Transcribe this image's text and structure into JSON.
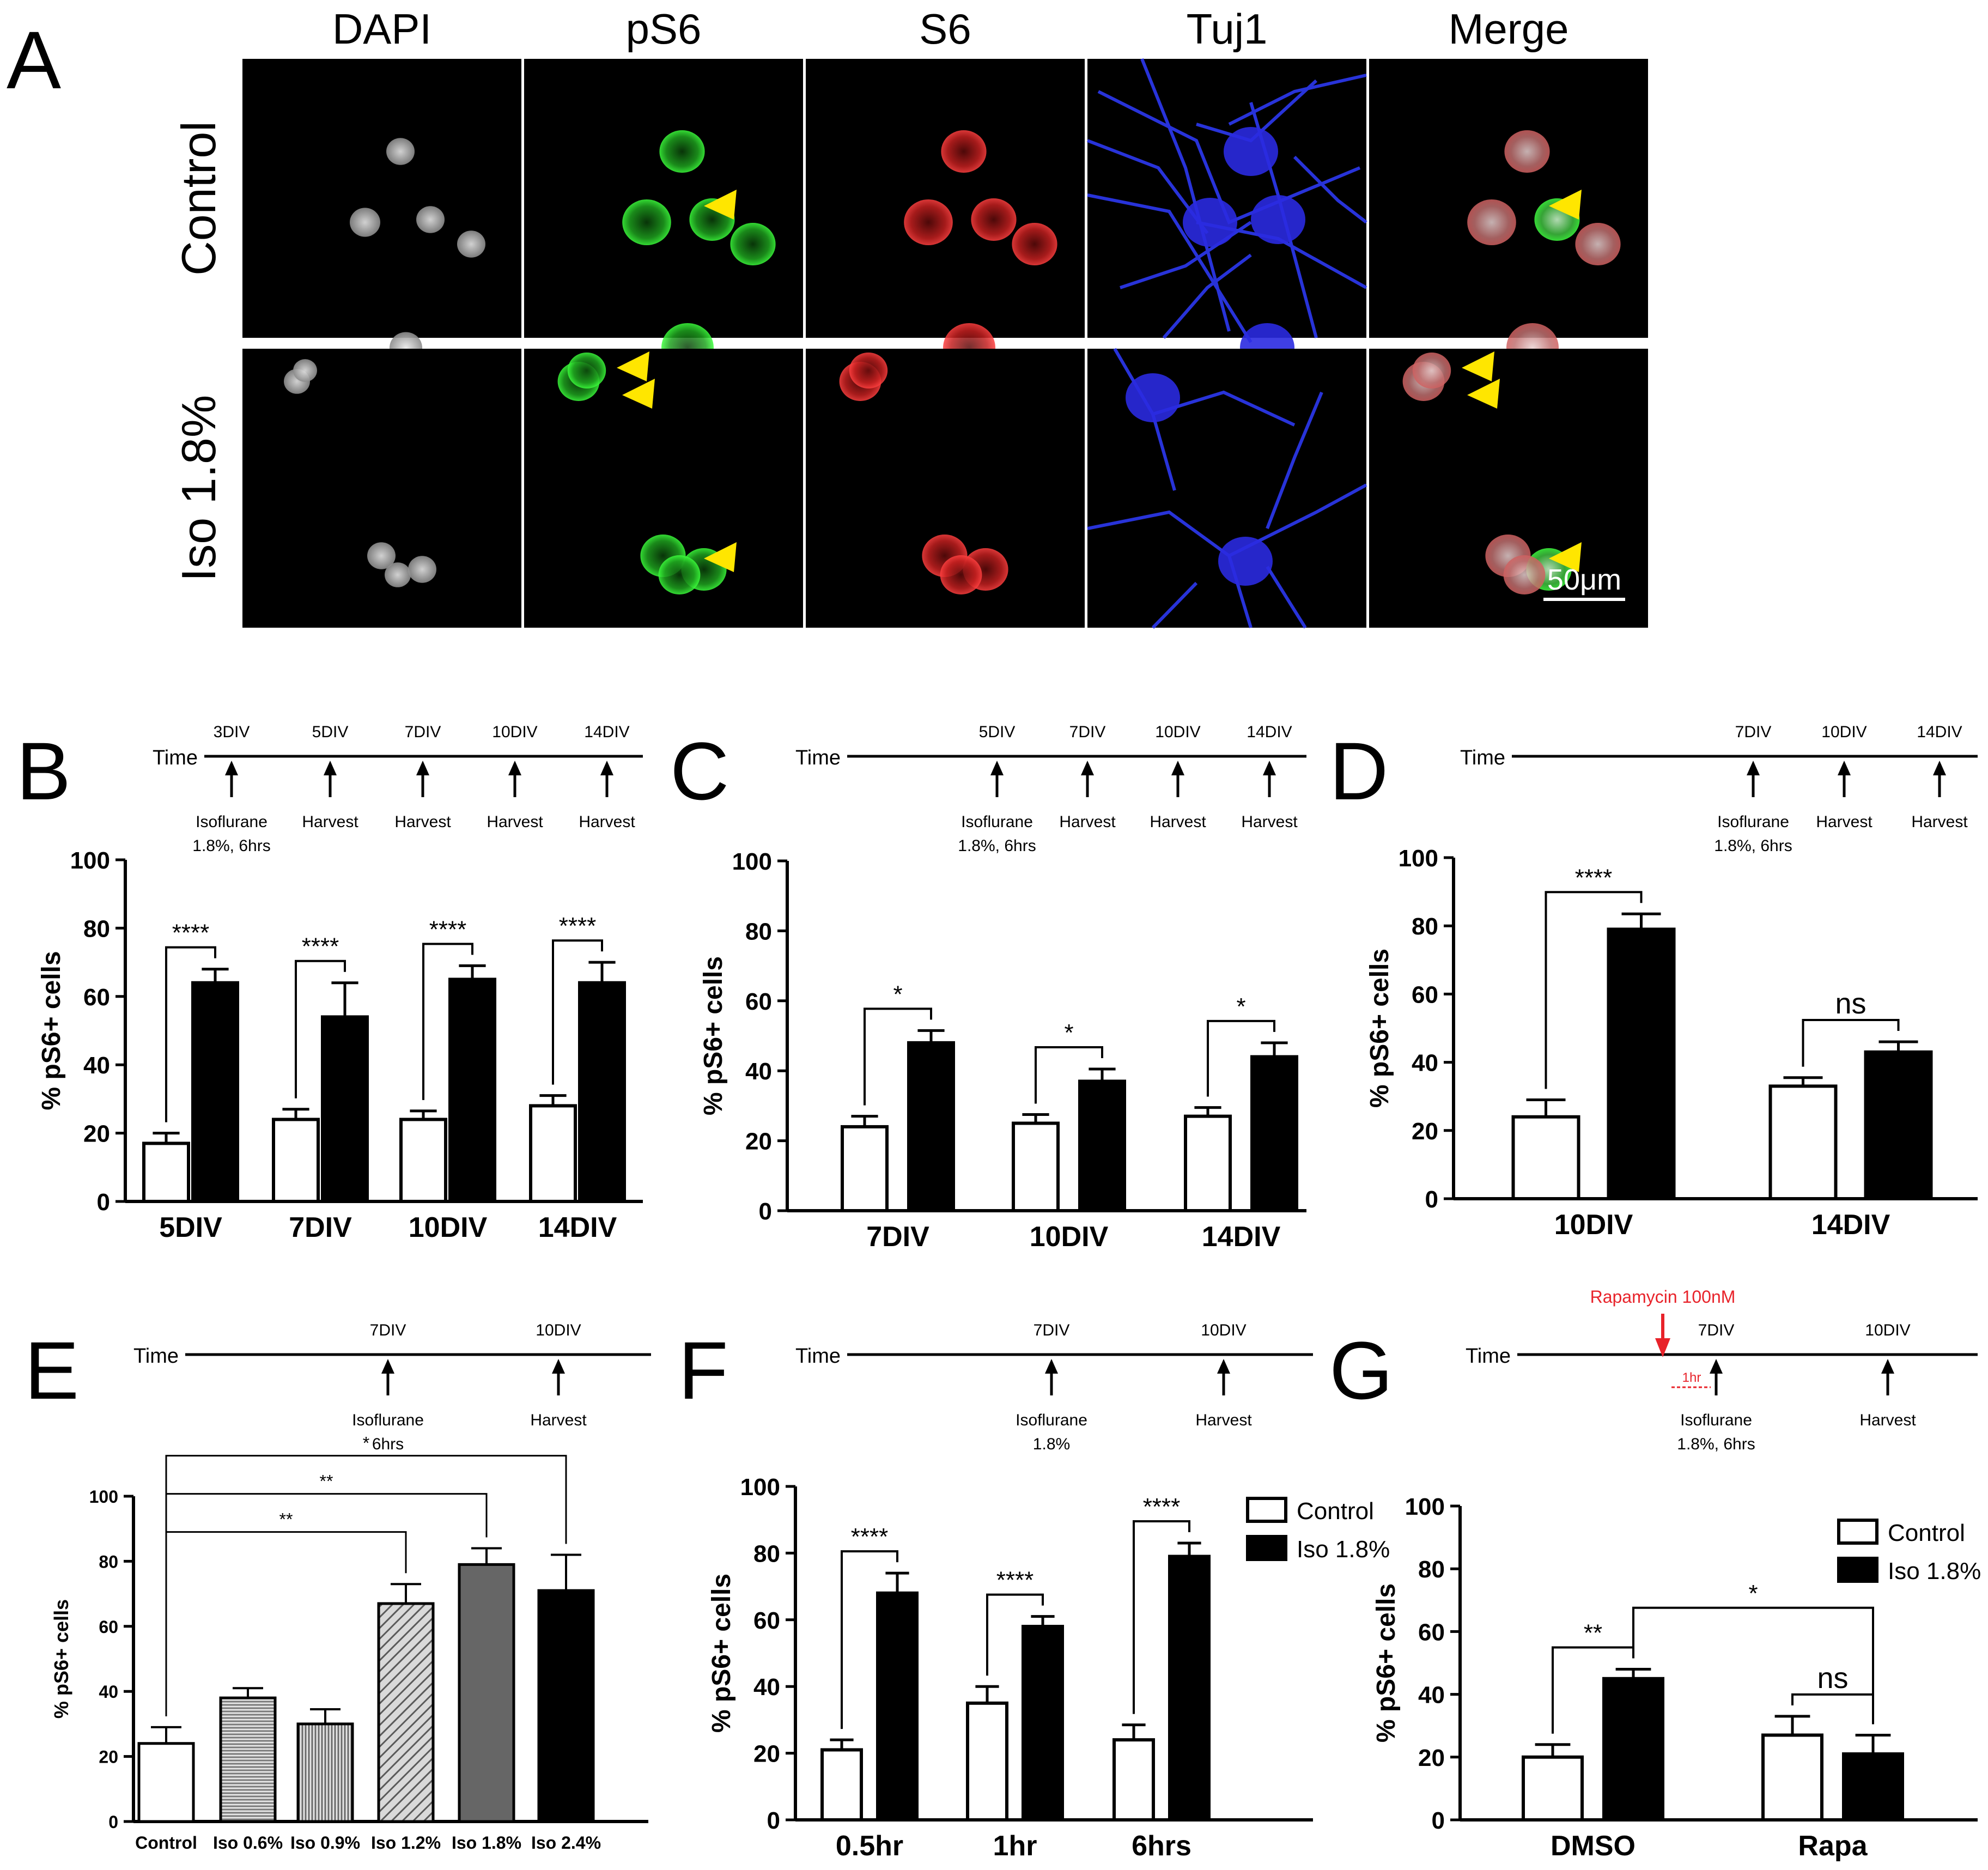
{
  "panel_letters": [
    "A",
    "B",
    "C",
    "D",
    "E",
    "F",
    "G"
  ],
  "micrograph": {
    "columns": [
      "DAPI",
      "pS6",
      "S6",
      "Tuj1",
      "Merge"
    ],
    "rows": [
      "Control",
      "Iso 1.8%"
    ],
    "scale_bar": "50μm"
  },
  "timelines": {
    "B": {
      "label": "Time",
      "marks": [
        "3DIV",
        "5DIV",
        "7DIV",
        "10DIV",
        "14DIV"
      ],
      "events": [
        [
          "Isoflurane",
          "1.8%, 6hrs"
        ],
        [
          "Harvest"
        ],
        [
          "Harvest"
        ],
        [
          "Harvest"
        ],
        [
          "Harvest"
        ]
      ]
    },
    "C": {
      "label": "Time",
      "marks": [
        "5DIV",
        "7DIV",
        "10DIV",
        "14DIV"
      ],
      "events": [
        [
          "Isoflurane",
          "1.8%, 6hrs"
        ],
        [
          "Harvest"
        ],
        [
          "Harvest"
        ],
        [
          "Harvest"
        ]
      ]
    },
    "D": {
      "label": "Time",
      "marks": [
        "7DIV",
        "10DIV",
        "14DIV"
      ],
      "events": [
        [
          "Isoflurane",
          "1.8%, 6hrs"
        ],
        [
          "Harvest"
        ],
        [
          "Harvest"
        ]
      ]
    },
    "E": {
      "label": "Time",
      "marks": [
        "7DIV",
        "10DIV"
      ],
      "events": [
        [
          "Isoflurane",
          "6hrs"
        ],
        [
          "Harvest"
        ]
      ]
    },
    "F": {
      "label": "Time",
      "marks": [
        "7DIV",
        "10DIV"
      ],
      "events": [
        [
          "Isoflurane",
          "1.8%"
        ],
        [
          "Harvest"
        ]
      ]
    },
    "G": {
      "label": "Time",
      "marks": [
        "7DIV",
        "10DIV"
      ],
      "events": [
        [
          "Isoflurane",
          "1.8%, 6hrs"
        ],
        [
          "Harvest"
        ]
      ],
      "treatment": "Rapamycin 100nM",
      "interval": "1hr",
      "treatment_color": "#e8232a"
    }
  },
  "legend": {
    "control": "Control",
    "iso": "Iso 1.8%"
  },
  "chart_data": [
    {
      "panel": "B",
      "type": "bar",
      "ylabel": "% pS6+ cells",
      "ylim": [
        0,
        100
      ],
      "yticks": [
        0,
        20,
        40,
        60,
        80,
        100
      ],
      "categories": [
        "5DIV",
        "7DIV",
        "10DIV",
        "14DIV"
      ],
      "series": [
        {
          "values": [
            17,
            24,
            24,
            28
          ],
          "errors": [
            3,
            3,
            2.5,
            3
          ]
        },
        {
          "values": [
            64,
            54,
            65,
            64
          ],
          "errors": [
            4,
            10,
            4,
            6
          ]
        }
      ],
      "comparisons": [
        {
          "from": [
            0,
            0
          ],
          "to": [
            0,
            1
          ],
          "label": "****"
        },
        {
          "from": [
            1,
            0
          ],
          "to": [
            1,
            1
          ],
          "label": "****"
        },
        {
          "from": [
            2,
            0
          ],
          "to": [
            2,
            1
          ],
          "label": "****"
        },
        {
          "from": [
            3,
            0
          ],
          "to": [
            3,
            1
          ],
          "label": "****"
        }
      ]
    },
    {
      "panel": "C",
      "type": "bar",
      "ylabel": "% pS6+ cells",
      "ylim": [
        0,
        100
      ],
      "yticks": [
        0,
        20,
        40,
        60,
        80,
        100
      ],
      "categories": [
        "7DIV",
        "10DIV",
        "14DIV"
      ],
      "series": [
        {
          "values": [
            24,
            25,
            27
          ],
          "errors": [
            3,
            2.5,
            2.5
          ]
        },
        {
          "values": [
            48,
            37,
            44
          ],
          "errors": [
            3.5,
            3.5,
            4
          ]
        }
      ],
      "comparisons": [
        {
          "from": [
            0,
            0
          ],
          "to": [
            0,
            1
          ],
          "label": "*"
        },
        {
          "from": [
            1,
            0
          ],
          "to": [
            1,
            1
          ],
          "label": "*"
        },
        {
          "from": [
            2,
            0
          ],
          "to": [
            2,
            1
          ],
          "label": "*"
        }
      ]
    },
    {
      "panel": "D",
      "type": "bar",
      "ylabel": "% pS6+ cells",
      "ylim": [
        0,
        100
      ],
      "yticks": [
        0,
        20,
        40,
        60,
        80,
        100
      ],
      "categories": [
        "10DIV",
        "14DIV"
      ],
      "series": [
        {
          "values": [
            24,
            33
          ],
          "errors": [
            5,
            2.5
          ]
        },
        {
          "values": [
            79,
            43
          ],
          "errors": [
            4.5,
            3
          ]
        }
      ],
      "comparisons": [
        {
          "from": [
            0,
            0
          ],
          "to": [
            0,
            1
          ],
          "label": "****"
        },
        {
          "from": [
            1,
            0
          ],
          "to": [
            1,
            1
          ],
          "label": "ns"
        }
      ]
    },
    {
      "panel": "E",
      "type": "bar",
      "ylabel": "% pS6+ cells",
      "ylim": [
        0,
        100
      ],
      "yticks": [
        0,
        20,
        40,
        60,
        80,
        100
      ],
      "categories": [
        "Control",
        "Iso 0.6%",
        "Iso 0.9%",
        "Iso 1.2%",
        "Iso 1.8%",
        "Iso 2.4%"
      ],
      "values": [
        24,
        38,
        30,
        67,
        79,
        71
      ],
      "errors": [
        5,
        3,
        4.5,
        6,
        5,
        11
      ],
      "styles": [
        "white",
        "hstripe",
        "vstripe",
        "diag",
        "darkgray",
        "black"
      ],
      "comparisons": [
        {
          "from": 0,
          "to": 3,
          "label": "**"
        },
        {
          "from": 0,
          "to": 4,
          "label": "**"
        },
        {
          "from": 0,
          "to": 5,
          "label": "*"
        }
      ]
    },
    {
      "panel": "F",
      "type": "bar",
      "ylabel": "% pS6+ cells",
      "ylim": [
        0,
        100
      ],
      "yticks": [
        0,
        20,
        40,
        60,
        80,
        100
      ],
      "categories": [
        "0.5hr",
        "1hr",
        "6hrs"
      ],
      "series": [
        {
          "name": "Control",
          "values": [
            21,
            35,
            24
          ],
          "errors": [
            3,
            5,
            4.5
          ]
        },
        {
          "name": "Iso 1.8%",
          "values": [
            68,
            58,
            79
          ],
          "errors": [
            6,
            3,
            4
          ]
        }
      ],
      "comparisons": [
        {
          "from": [
            0,
            0
          ],
          "to": [
            0,
            1
          ],
          "label": "****"
        },
        {
          "from": [
            1,
            0
          ],
          "to": [
            1,
            1
          ],
          "label": "****"
        },
        {
          "from": [
            2,
            0
          ],
          "to": [
            2,
            1
          ],
          "label": "****"
        }
      ],
      "legend": "top-right"
    },
    {
      "panel": "G",
      "type": "bar",
      "ylabel": "% pS6+ cells",
      "ylim": [
        0,
        100
      ],
      "yticks": [
        0,
        20,
        40,
        60,
        80,
        100
      ],
      "categories": [
        "DMSO",
        "Rapa"
      ],
      "series": [
        {
          "name": "Control",
          "values": [
            20,
            27
          ],
          "errors": [
            4,
            6
          ]
        },
        {
          "name": "Iso 1.8%",
          "values": [
            45,
            21
          ],
          "errors": [
            3,
            6
          ]
        }
      ],
      "comparisons": [
        {
          "from": [
            0,
            0
          ],
          "to": [
            0,
            1
          ],
          "label": "**"
        },
        {
          "from": [
            1,
            0
          ],
          "to": [
            1,
            1
          ],
          "label": "ns"
        },
        {
          "from": [
            0,
            1
          ],
          "to": [
            1,
            1
          ],
          "label": "*"
        }
      ],
      "legend": "top-right"
    }
  ]
}
